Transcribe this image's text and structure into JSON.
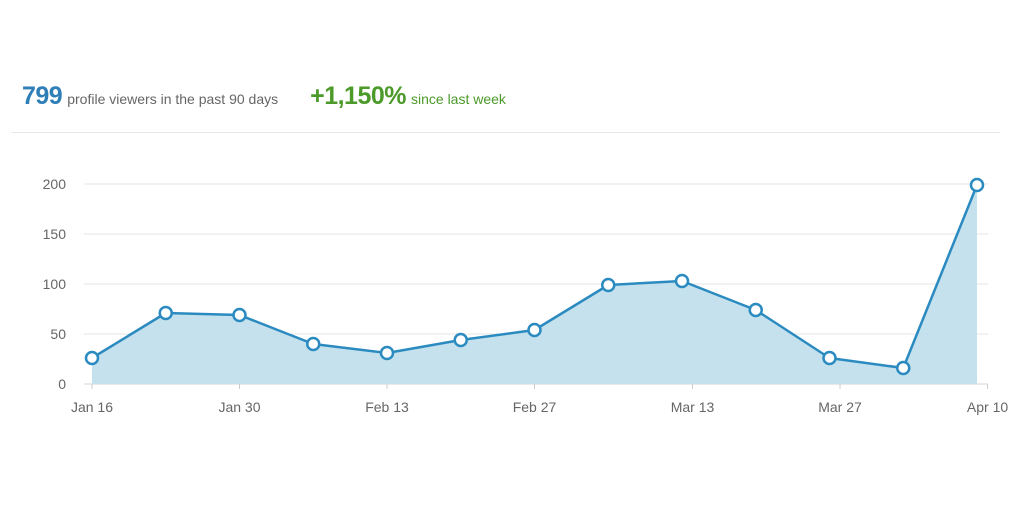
{
  "header": {
    "viewers_count": "799",
    "viewers_label": "profile viewers in the past 90 days",
    "change_value": "+1,150%",
    "change_label": "since last week"
  },
  "colors": {
    "primary": "#2e7eb8",
    "positive": "#4c9a2a",
    "line": "#2b8bc0",
    "area": "#c2dfec",
    "grid": "#e4e4e4"
  },
  "chart_data": {
    "type": "area",
    "title": "",
    "xlabel": "",
    "ylabel": "",
    "x": [
      "2024-01-16",
      "2024-01-23",
      "2024-01-30",
      "2024-02-06",
      "2024-02-13",
      "2024-02-20",
      "2024-02-27",
      "2024-03-05",
      "2024-03-12",
      "2024-03-19",
      "2024-03-26",
      "2024-04-02",
      "2024-04-09"
    ],
    "x_ticks": [
      "Jan 16",
      "Jan 30",
      "Feb 13",
      "Feb 27",
      "Mar 13",
      "Mar 27",
      "Apr 10"
    ],
    "y_ticks": [
      0,
      50,
      100,
      150,
      200
    ],
    "ylim": [
      0,
      200
    ],
    "series": [
      {
        "values": [
          26,
          71,
          69,
          40,
          31,
          44,
          54,
          99,
          103,
          74,
          26,
          16,
          199
        ]
      }
    ],
    "markers": "hollow-circle",
    "grid": true,
    "legend": "none"
  }
}
